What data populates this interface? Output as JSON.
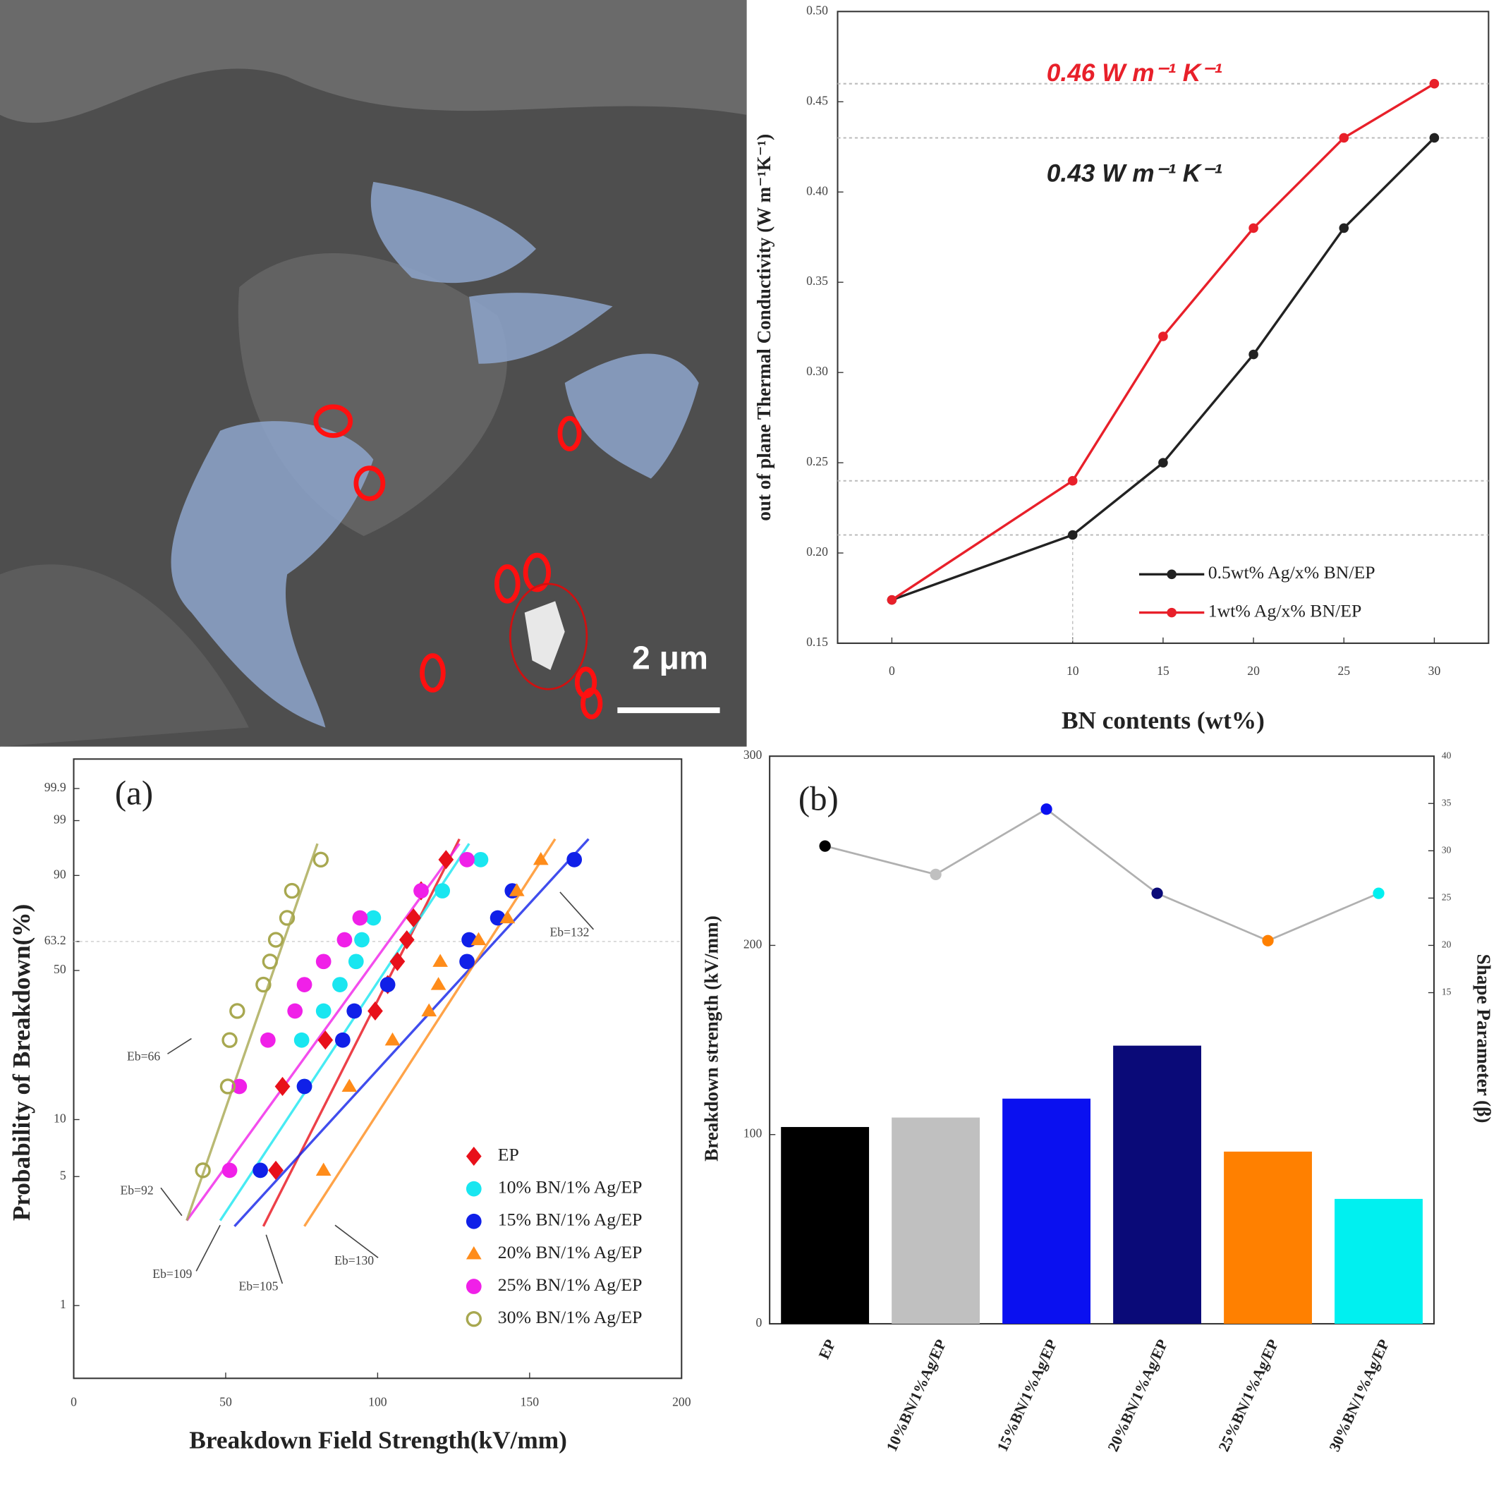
{
  "image": {
    "scale_bar": "2 μm"
  },
  "chart_data": [
    {
      "type": "line",
      "x_label": "BN contents (wt%)",
      "y_label": "out of plane Thermal Conductivity (W m⁻¹K⁻¹)",
      "x": [
        0,
        10,
        15,
        20,
        25,
        30
      ],
      "xlim": [
        -3,
        33
      ],
      "xticks": [
        0,
        10,
        15,
        20,
        25,
        30
      ],
      "ylim": [
        0.15,
        0.5
      ],
      "yticks": [
        0.15,
        {
          "value": 0.2,
          "label": "0.20"
        },
        0.25,
        {
          "value": 0.3,
          "label": "0.30"
        },
        0.35,
        {
          "value": 0.4,
          "label": "0.40"
        },
        0.45,
        {
          "value": 0.5,
          "label": "0.50"
        }
      ],
      "series": [
        {
          "name": "0.5wt% Ag/x% BN/EP",
          "color": "#222222",
          "values": [
            0.174,
            0.21,
            0.25,
            0.31,
            0.38,
            0.43
          ]
        },
        {
          "name": "1wt% Ag/x% BN/EP",
          "color": "#e8202a",
          "values": [
            0.174,
            0.24,
            0.32,
            0.38,
            0.43,
            0.46
          ]
        }
      ],
      "annotations": [
        {
          "text": "0.46 W m⁻¹ K⁻¹",
          "color": "#e8202a"
        },
        {
          "text": "0.43 W m⁻¹ K⁻¹",
          "color": "#222222"
        }
      ],
      "legend": "lower right"
    },
    {
      "type": "scatter",
      "panel_label": "(a)",
      "x_label": "Breakdown Field Strength(kV/mm)",
      "y_label": "Probability of Breakdown(%)",
      "yscale": "weibull",
      "xlim": [
        0,
        200
      ],
      "xticks": [
        0,
        50,
        100,
        150,
        200
      ],
      "ylim": [
        0.4,
        99.99
      ],
      "yticks": [
        1,
        5,
        10,
        50,
        63.2,
        90,
        99,
        99.9
      ],
      "reference_line": 63.2,
      "series": [
        {
          "name": "EP",
          "color": "#e8101a",
          "marker": "diamond",
          "x": [
            66.5,
            68.7,
            82.8,
            99.2,
            103.3,
            106.5,
            109.6,
            111.8,
            114.3,
            122.5
          ],
          "values": [
            5.4,
            14.8,
            25,
            34,
            44,
            54,
            64,
            74,
            85,
            94
          ],
          "fit_x": [
            62.4,
            126.9
          ],
          "fit_values": [
            2.7,
            97.4
          ]
        },
        {
          "name": "10% BN/1% Ag/EP",
          "color": "#19e6f0",
          "marker": "circle",
          "x": [
            61.4,
            75.9,
            75,
            82.2,
            87.6,
            92.9,
            94.8,
            98.6,
            121.3,
            133.9
          ],
          "values": [
            5.4,
            14.8,
            25,
            34,
            44,
            54,
            64,
            74,
            85,
            94
          ],
          "fit_x": [
            48.2,
            130.1
          ],
          "fit_values": [
            2.9,
            96.8
          ]
        },
        {
          "name": "15% BN/1% Ag/EP",
          "color": "#1020e8",
          "marker": "circle",
          "x": [
            61.4,
            75.9,
            88.5,
            92.3,
            103.3,
            129.4,
            130.1,
            139.5,
            144.3,
            164.7
          ],
          "values": [
            5.4,
            14.8,
            25,
            34,
            44,
            54,
            64,
            74,
            85,
            94
          ],
          "fit_x": [
            52.9,
            169.4
          ],
          "fit_values": [
            2.7,
            97.4
          ]
        },
        {
          "name": "20% BN/1% Ag/EP",
          "color": "#ff8c1a",
          "marker": "triangle",
          "x": [
            82.2,
            90.7,
            104.9,
            116.9,
            120,
            120.6,
            133.2,
            142.7,
            145.8,
            153.7
          ],
          "values": [
            5.4,
            14.8,
            25,
            34,
            44,
            54,
            64,
            74,
            85,
            94
          ],
          "fit_x": [
            75.9,
            158.4
          ],
          "fit_values": [
            2.7,
            97.4
          ]
        },
        {
          "name": "25% BN/1% Ag/EP",
          "color": "#f020e8",
          "marker": "circle",
          "x": [
            51.3,
            54.5,
            63.9,
            72.8,
            75.9,
            82.2,
            89.1,
            94.2,
            114.3,
            129.4
          ],
          "values": [
            5.4,
            14.8,
            25,
            34,
            44,
            54,
            64,
            74,
            85,
            94
          ],
          "fit_x": [
            37.2,
            126.9
          ],
          "fit_values": [
            2.9,
            96.8
          ]
        },
        {
          "name": "30% BN/1% Ag/EP",
          "color": "#a8a850",
          "marker": "open-circle",
          "x": [
            42.5,
            50.7,
            51.3,
            53.8,
            62.4,
            64.6,
            66.5,
            70.2,
            71.8,
            81.3
          ],
          "values": [
            5.4,
            14.8,
            25,
            34,
            44,
            54,
            64,
            74,
            85,
            94
          ],
          "fit_x": [
            37.2,
            80.2
          ],
          "fit_values": [
            2.9,
            96.8
          ]
        }
      ],
      "annotations": [
        "Eb=66",
        "Eb=92",
        "Eb=109",
        "Eb=105",
        "Eb=130",
        "Eb=132"
      ],
      "legend": "lower right"
    },
    {
      "type": "bar",
      "panel_label": "(b)",
      "y_label": "Breakdown strength (kV/mm)",
      "y2_label": "Shape Parameter (β)",
      "categories": [
        "EP",
        "10%BN/1%Ag/EP",
        "15%BN/1%Ag/EP",
        "20%BN/1%Ag/EP",
        "25%BN/1%Ag/EP",
        "30%BN/1%Ag/EP"
      ],
      "ylim": [
        0,
        300
      ],
      "yticks": [
        0,
        100,
        200,
        300
      ],
      "y2lim": [
        -20,
        40
      ],
      "y2ticks": [
        15,
        20,
        25,
        30,
        35,
        40
      ],
      "series": [
        {
          "values": [
            104,
            109,
            119,
            147,
            91,
            66
          ],
          "colors": [
            "#000000",
            "#c0c0c0",
            "#0a10f0",
            "#0a0a78",
            "#ff8000",
            "#00f0f0"
          ]
        },
        {
          "type": "line",
          "axis": "y2",
          "color": "#b0b0b0",
          "values": [
            30.5,
            27.5,
            34.4,
            25.5,
            20.5,
            25.5
          ]
        }
      ]
    }
  ]
}
